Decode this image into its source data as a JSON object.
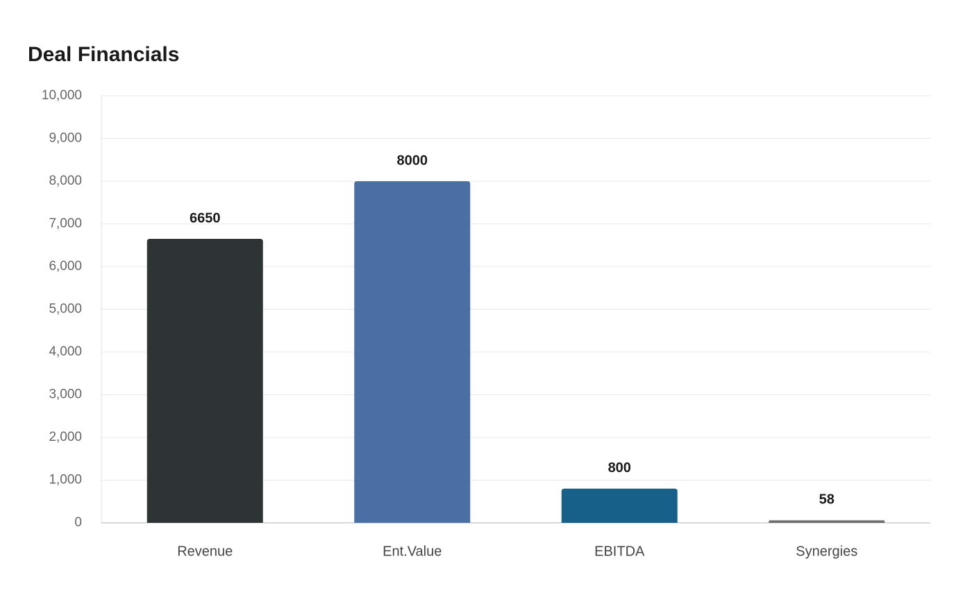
{
  "chart_data": {
    "type": "bar",
    "title": "Deal Financials",
    "categories": [
      "Revenue",
      "Ent.Value",
      "EBITDA",
      "Synergies"
    ],
    "values": [
      6650,
      8000,
      800,
      58
    ],
    "colors": [
      "#2e3436",
      "#4a6fa5",
      "#17608a",
      "#6e6e6e"
    ],
    "ylim": [
      0,
      10000
    ],
    "yticks": [
      0,
      {
        "value": 1000,
        "label": "1,000"
      },
      {
        "value": 2000,
        "label": "2,000"
      },
      {
        "value": 3000,
        "label": "3,000"
      },
      {
        "value": 4000,
        "label": "4,000"
      },
      {
        "value": 5000,
        "label": "5,000"
      },
      {
        "value": 6000,
        "label": "6,000"
      },
      {
        "value": 7000,
        "label": "7,000"
      },
      {
        "value": 8000,
        "label": "8,000"
      },
      {
        "value": 9000,
        "label": "9,000"
      },
      {
        "value": 10000,
        "label": "10,000"
      }
    ],
    "grid": true
  }
}
